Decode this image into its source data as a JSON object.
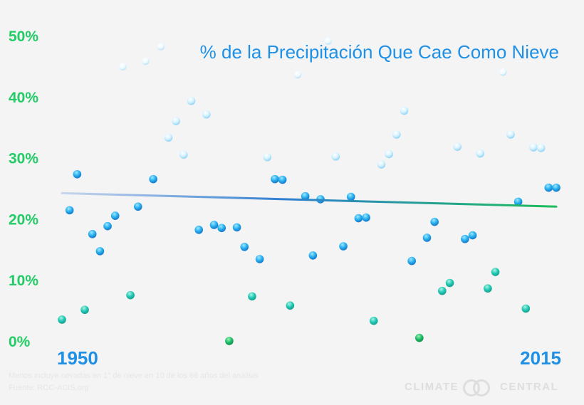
{
  "chart_data": {
    "type": "scatter",
    "title": "% de la Precipitación Que Cae Como Nieve",
    "xlabel": "",
    "ylabel": "",
    "xlim": [
      1950,
      2015
    ],
    "ylim": [
      0,
      50
    ],
    "x_tick_labels": [
      "1950",
      "2015"
    ],
    "y_tick_labels": [
      "0%",
      "10%",
      "20%",
      "30%",
      "40%",
      "50%"
    ],
    "grid": false,
    "series": [
      {
        "x": [
          1950,
          1951,
          1952,
          1953,
          1954,
          1955,
          1956,
          1957,
          1958,
          1959,
          1960,
          1961,
          1962,
          1963,
          1964,
          1965,
          1966,
          1967,
          1968,
          1969,
          1970,
          1971,
          1972,
          1973,
          1974,
          1975,
          1976,
          1977,
          1978,
          1979,
          1980,
          1981,
          1982,
          1983,
          1984,
          1985,
          1986,
          1987,
          1988,
          1989,
          1990,
          1991,
          1992,
          1993,
          1994,
          1995,
          1996,
          1997,
          1998,
          1999,
          2000,
          2001,
          2002,
          2003,
          2004,
          2005,
          2006,
          2007,
          2008,
          2009,
          2010,
          2011,
          2012,
          2013,
          2014,
          2015
        ],
        "y": [
          3.5,
          21.4,
          27.3,
          5.1,
          17.5,
          14.7,
          18.8,
          20.5,
          44.9,
          7.5,
          22.0,
          45.8,
          26.5,
          48.2,
          33.3,
          36.0,
          30.5,
          39.3,
          18.2,
          37.1,
          19.0,
          18.5,
          0.0,
          18.6,
          15.4,
          7.3,
          13.4,
          30.1,
          26.5,
          26.4,
          5.8,
          43.6,
          23.7,
          14.0,
          23.2,
          49.1,
          30.2,
          15.5,
          23.6,
          20.1,
          20.2,
          3.3,
          28.9,
          30.6,
          33.8,
          37.7,
          13.1,
          0.5,
          16.9,
          19.5,
          8.2,
          9.5,
          31.8,
          16.7,
          17.3,
          30.7,
          8.6,
          11.3,
          44.0,
          33.8,
          22.8,
          5.3,
          31.7,
          31.6,
          25.1,
          25.1
        ]
      }
    ],
    "trend_line": {
      "x": [
        1950,
        2015
      ],
      "y": [
        24.2,
        22.0
      ]
    }
  },
  "footnote": {
    "line1": "Menos incluye nevadas en 1\" de nieve en 10 de los 66 años del análisis",
    "line2": "Fuente: RCC-ACIS.org"
  },
  "logo": {
    "left": "CLIMATE",
    "right": "CENTRAL"
  },
  "colors": {
    "y_tick": "#22cc66",
    "x_tick": "#1e90e6",
    "title": "#1e90e6",
    "trend_start": "#c9d6ee",
    "trend_mid": "#2f7fd0",
    "trend_end": "#1dbd5b"
  }
}
